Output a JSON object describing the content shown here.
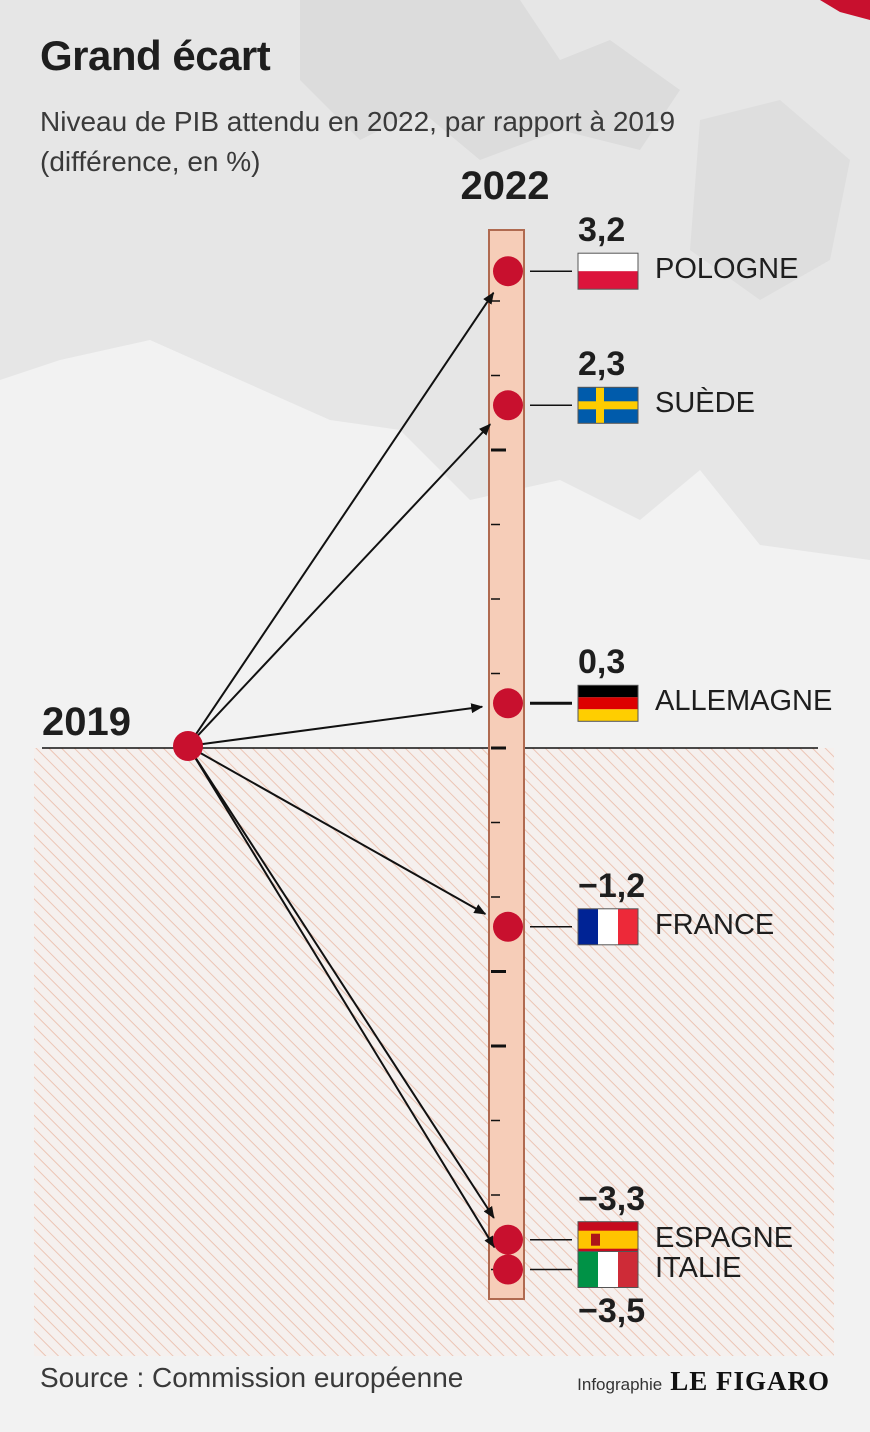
{
  "header": {
    "title": "Grand écart",
    "subtitle": "Niveau de PIB attendu en 2022, par rapport à 2019 (différence, en %)"
  },
  "chart_data": {
    "type": "slope",
    "start_label": "2019",
    "end_label": "2022",
    "baseline": 0,
    "ylim": [
      -3.8,
      3.5
    ],
    "points": [
      {
        "country": "POLOGNE",
        "value": 3.2,
        "value_text": "3,2",
        "flag": "poland-flag"
      },
      {
        "country": "SUÈDE",
        "value": 2.3,
        "value_text": "2,3",
        "flag": "sweden-flag"
      },
      {
        "country": "ALLEMAGNE",
        "value": 0.3,
        "value_text": "0,3",
        "flag": "germany-flag"
      },
      {
        "country": "FRANCE",
        "value": -1.2,
        "value_text": "−1,2",
        "flag": "france-flag"
      },
      {
        "country": "ESPAGNE",
        "value": -3.3,
        "value_text": "−3,3",
        "flag": "spain-flag"
      },
      {
        "country": "ITALIE",
        "value": -3.5,
        "value_text": "−3,5",
        "flag": "italy-flag"
      }
    ]
  },
  "colors": {
    "dot": "#c8102e",
    "ruler_fill": "#f6cdb8",
    "ruler_stroke": "#b06a50",
    "hatch": "#ecc5b5"
  },
  "footer": {
    "source": "Source : Commission européenne",
    "credit_small": "Infographie",
    "credit_brand": "LE FIGARO"
  }
}
